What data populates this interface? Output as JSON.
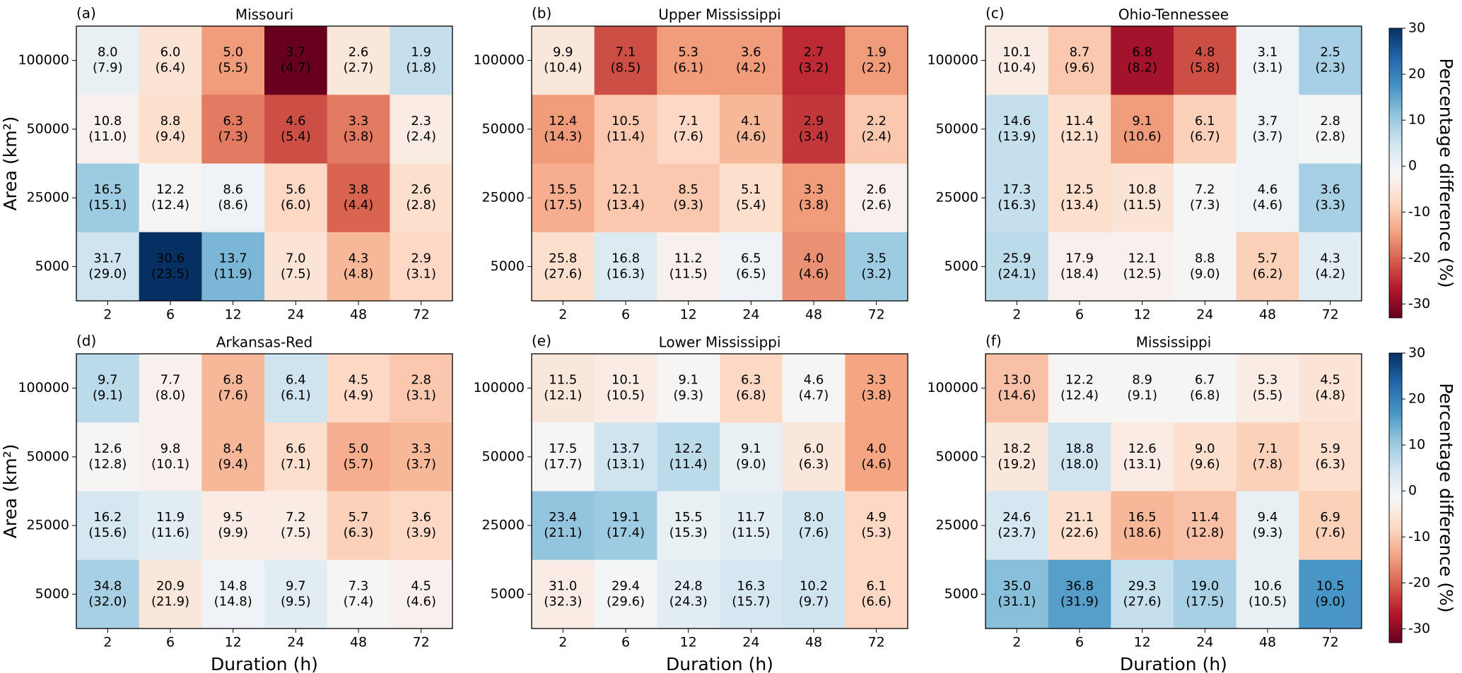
{
  "chart_data": [
    {
      "type": "heatmap",
      "panel_label": "(a)",
      "title": "Missouri",
      "y_label": "Area (km²)",
      "categories": [
        "2",
        "6",
        "12",
        "24",
        "48",
        "72"
      ],
      "rows": [
        "100000",
        "50000",
        "25000",
        "5000"
      ],
      "values": [
        [
          8.0,
          6.0,
          5.0,
          3.7,
          2.6,
          1.9
        ],
        [
          10.8,
          8.8,
          6.3,
          4.6,
          3.3,
          2.3
        ],
        [
          16.5,
          12.2,
          8.6,
          5.6,
          3.8,
          2.6
        ],
        [
          31.7,
          30.6,
          13.7,
          7.0,
          4.3,
          2.9
        ]
      ],
      "value_labels": [
        [
          "8.0",
          "6.0",
          "5.0",
          "3.7",
          "2.6",
          "1.9"
        ],
        [
          "10.8",
          "8.8",
          "6.3",
          "4.6",
          "3.3",
          "2.3"
        ],
        [
          "16.5",
          "12.2",
          "8.6",
          "5.6",
          "3.8",
          "2.6"
        ],
        [
          "31.7",
          "30.6",
          "13.7",
          "7.0",
          "4.3",
          "2.9"
        ]
      ],
      "ref_values": [
        [
          7.9,
          6.4,
          5.5,
          4.7,
          2.7,
          1.8
        ],
        [
          11.0,
          9.4,
          7.3,
          5.4,
          3.8,
          2.4
        ],
        [
          15.1,
          12.4,
          8.6,
          6.0,
          4.4,
          2.8
        ],
        [
          29.0,
          23.5,
          11.9,
          7.5,
          4.8,
          3.1
        ]
      ],
      "ref_labels": [
        [
          "(7.9)",
          "(6.4)",
          "(5.5)",
          "(4.7)",
          "(2.7)",
          "(1.8)"
        ],
        [
          "(11.0)",
          "(9.4)",
          "(7.3)",
          "(5.4)",
          "(3.8)",
          "(2.4)"
        ],
        [
          "(15.1)",
          "(12.4)",
          "(8.6)",
          "(6.0)",
          "(4.4)",
          "(2.8)"
        ],
        [
          "(29.0)",
          "(23.5)",
          "(11.9)",
          "(7.5)",
          "(4.8)",
          "(3.1)"
        ]
      ],
      "diff": [
        [
          1,
          -6,
          -15,
          -33,
          -5,
          6
        ],
        [
          -3,
          -7,
          -18,
          -22,
          -18,
          -4
        ],
        [
          10,
          -2,
          0,
          -8,
          -20,
          -7
        ],
        [
          5,
          30,
          13,
          -6,
          -12,
          -8
        ]
      ]
    },
    {
      "type": "heatmap",
      "panel_label": "(b)",
      "title": "Upper Mississippi",
      "categories": [
        "2",
        "6",
        "12",
        "24",
        "48",
        "72"
      ],
      "rows": [
        "100000",
        "50000",
        "25000",
        "5000"
      ],
      "values": [
        [
          9.9,
          7.1,
          5.3,
          3.6,
          2.7,
          1.9
        ],
        [
          12.4,
          10.5,
          7.1,
          4.1,
          2.9,
          2.2
        ],
        [
          15.5,
          12.1,
          8.5,
          5.1,
          3.3,
          2.6
        ],
        [
          25.8,
          16.8,
          11.2,
          6.5,
          4.0,
          3.5
        ]
      ],
      "value_labels": [
        [
          "9.9",
          "7.1",
          "5.3",
          "3.6",
          "2.7",
          "1.9"
        ],
        [
          "12.4",
          "10.5",
          "7.1",
          "4.1",
          "2.9",
          "2.2"
        ],
        [
          "15.5",
          "12.1",
          "8.5",
          "5.1",
          "3.3",
          "2.6"
        ],
        [
          "25.8",
          "16.8",
          "11.2",
          "6.5",
          "4.0",
          "3.5"
        ]
      ],
      "ref_values": [
        [
          10.4,
          8.5,
          6.1,
          4.2,
          3.2,
          2.2
        ],
        [
          14.3,
          11.4,
          7.6,
          4.6,
          3.4,
          2.4
        ],
        [
          17.5,
          13.4,
          9.3,
          5.4,
          3.8,
          2.6
        ],
        [
          27.6,
          16.3,
          11.5,
          6.5,
          4.6,
          3.2
        ]
      ],
      "ref_labels": [
        [
          "(10.4)",
          "(8.5)",
          "(6.1)",
          "(4.2)",
          "(3.2)",
          "(2.2)"
        ],
        [
          "(14.3)",
          "(11.4)",
          "(7.6)",
          "(4.6)",
          "(3.4)",
          "(2.4)"
        ],
        [
          "(17.5)",
          "(13.4)",
          "(9.3)",
          "(5.4)",
          "(3.8)",
          "(2.6)"
        ],
        [
          "(27.6)",
          "(16.3)",
          "(11.5)",
          "(6.5)",
          "(4.6)",
          "(3.2)"
        ]
      ],
      "diff": [
        [
          -5,
          -22,
          -15,
          -15,
          -25,
          -15
        ],
        [
          -15,
          -10,
          -8,
          -12,
          -24,
          -10
        ],
        [
          -13,
          -10,
          -10,
          -7,
          -15,
          -3
        ],
        [
          -7,
          3,
          -3,
          0,
          -16,
          10
        ]
      ]
    },
    {
      "type": "heatmap",
      "panel_label": "(c)",
      "title": "Ohio-Tennessee",
      "categories": [
        "2",
        "6",
        "12",
        "24",
        "48",
        "72"
      ],
      "rows": [
        "100000",
        "50000",
        "25000",
        "5000"
      ],
      "values": [
        [
          10.1,
          8.7,
          6.8,
          4.8,
          3.1,
          2.5
        ],
        [
          14.6,
          11.4,
          9.1,
          6.1,
          3.7,
          2.8
        ],
        [
          17.3,
          12.5,
          10.8,
          7.2,
          4.6,
          3.6
        ],
        [
          25.9,
          17.9,
          12.1,
          8.8,
          5.7,
          4.3
        ]
      ],
      "value_labels": [
        [
          "10.1",
          "8.7",
          "6.8",
          "4.8",
          "3.1",
          "2.5"
        ],
        [
          "14.6",
          "11.4",
          "9.1",
          "6.1",
          "3.7",
          "2.8"
        ],
        [
          "17.3",
          "12.5",
          "10.8",
          "7.2",
          "4.6",
          "3.6"
        ],
        [
          "25.9",
          "17.9",
          "12.1",
          "8.8",
          "5.7",
          "4.3"
        ]
      ],
      "ref_values": [
        [
          10.4,
          9.6,
          8.2,
          5.8,
          3.1,
          2.3
        ],
        [
          13.9,
          12.1,
          10.6,
          6.7,
          3.7,
          2.8
        ],
        [
          16.3,
          13.4,
          11.5,
          7.3,
          4.6,
          3.3
        ],
        [
          24.1,
          18.4,
          12.5,
          9.0,
          6.2,
          4.2
        ]
      ],
      "ref_labels": [
        [
          "(10.4)",
          "(9.6)",
          "(8.2)",
          "(5.8)",
          "(3.1)",
          "(2.3)"
        ],
        [
          "(13.9)",
          "(12.1)",
          "(10.6)",
          "(6.7)",
          "(3.7)",
          "(2.8)"
        ],
        [
          "(16.3)",
          "(13.4)",
          "(11.5)",
          "(7.3)",
          "(4.6)",
          "(3.3)"
        ],
        [
          "(24.1)",
          "(18.4)",
          "(12.5)",
          "(9.0)",
          "(6.2)",
          "(4.2)"
        ]
      ],
      "diff": [
        [
          -4,
          -10,
          -28,
          -22,
          0,
          9
        ],
        [
          6,
          -7,
          -15,
          -9,
          0,
          -1
        ],
        [
          6,
          -7,
          -6,
          -1,
          0,
          9
        ],
        [
          7,
          -3,
          -3,
          -2,
          -9,
          2
        ]
      ],
      "colorbar": {
        "label": "Percentage difference (%)",
        "lim": [
          -33,
          30
        ],
        "ticks": [
          30,
          20,
          10,
          0,
          -10,
          -20,
          -30
        ],
        "colormap": [
          "#67001f",
          "#b2182b",
          "#d6604d",
          "#f4a582",
          "#fddbc7",
          "#f7f7f7",
          "#d1e5f0",
          "#92c5de",
          "#4393c3",
          "#2166ac",
          "#053061"
        ]
      }
    },
    {
      "type": "heatmap",
      "panel_label": "(d)",
      "title": "Arkansas-Red",
      "y_label": "Area (km²)",
      "x_label": "Duration (h)",
      "categories": [
        "2",
        "6",
        "12",
        "24",
        "48",
        "72"
      ],
      "rows": [
        "100000",
        "50000",
        "25000",
        "5000"
      ],
      "values": [
        [
          9.7,
          7.7,
          6.8,
          6.4,
          4.5,
          2.8
        ],
        [
          12.6,
          9.8,
          8.4,
          6.6,
          5.0,
          3.3
        ],
        [
          16.2,
          11.9,
          9.5,
          7.2,
          5.7,
          3.6
        ],
        [
          34.8,
          20.9,
          14.8,
          9.7,
          7.3,
          4.5
        ]
      ],
      "value_labels": [
        [
          "9.7",
          "7.7",
          "6.8",
          "6.4",
          "4.5",
          "2.8"
        ],
        [
          "12.6",
          "9.8",
          "8.4",
          "6.6",
          "5.0",
          "3.3"
        ],
        [
          "16.2",
          "11.9",
          "9.5",
          "7.2",
          "5.7",
          "3.6"
        ],
        [
          "34.8",
          "20.9",
          "14.8",
          "9.7",
          "7.3",
          "4.5"
        ]
      ],
      "ref_values": [
        [
          9.1,
          8.0,
          7.6,
          6.1,
          4.9,
          3.1
        ],
        [
          12.8,
          10.1,
          9.4,
          7.1,
          5.7,
          3.7
        ],
        [
          15.6,
          11.6,
          9.9,
          7.5,
          6.3,
          3.9
        ],
        [
          32.0,
          21.9,
          14.8,
          9.5,
          7.4,
          4.6
        ]
      ],
      "ref_labels": [
        [
          "(9.1)",
          "(8.0)",
          "(7.6)",
          "(6.1)",
          "(4.9)",
          "(3.1)"
        ],
        [
          "(12.8)",
          "(10.1)",
          "(9.4)",
          "(7.1)",
          "(5.7)",
          "(3.7)"
        ],
        [
          "(15.6)",
          "(11.6)",
          "(9.9)",
          "(7.5)",
          "(6.3)",
          "(3.9)"
        ],
        [
          "(32.0)",
          "(21.9)",
          "(14.8)",
          "(9.5)",
          "(7.4)",
          "(4.6)"
        ]
      ],
      "diff": [
        [
          7,
          -3,
          -12,
          5,
          -8,
          -10
        ],
        [
          -2,
          -3,
          -12,
          -7,
          -13,
          -12
        ],
        [
          4,
          2,
          -4,
          -4,
          -9,
          -8
        ],
        [
          9,
          -5,
          0,
          2,
          -1,
          -3
        ]
      ]
    },
    {
      "type": "heatmap",
      "panel_label": "(e)",
      "title": "Lower Mississippi",
      "x_label": "Duration (h)",
      "categories": [
        "2",
        "6",
        "12",
        "24",
        "48",
        "72"
      ],
      "rows": [
        "100000",
        "50000",
        "25000",
        "5000"
      ],
      "values": [
        [
          11.5,
          10.1,
          9.1,
          6.3,
          4.6,
          3.3
        ],
        [
          17.5,
          13.7,
          12.2,
          9.1,
          6.0,
          4.0
        ],
        [
          23.4,
          19.1,
          15.5,
          11.7,
          8.0,
          4.9
        ],
        [
          31.0,
          29.4,
          24.8,
          16.3,
          10.2,
          6.1
        ]
      ],
      "value_labels": [
        [
          "11.5",
          "10.1",
          "9.1",
          "6.3",
          "4.6",
          "3.3"
        ],
        [
          "17.5",
          "13.7",
          "12.2",
          "9.1",
          "6.0",
          "4.0"
        ],
        [
          "23.4",
          "19.1",
          "15.5",
          "11.7",
          "8.0",
          "4.9"
        ],
        [
          "31.0",
          "29.4",
          "24.8",
          "16.3",
          "10.2",
          "6.1"
        ]
      ],
      "ref_values": [
        [
          12.1,
          10.5,
          9.3,
          6.8,
          4.7,
          3.8
        ],
        [
          17.7,
          13.1,
          11.4,
          9.0,
          6.3,
          4.6
        ],
        [
          21.1,
          17.4,
          15.3,
          11.5,
          7.6,
          5.3
        ],
        [
          32.3,
          29.6,
          24.3,
          15.7,
          9.7,
          6.6
        ]
      ],
      "ref_labels": [
        [
          "(12.1)",
          "(10.5)",
          "(9.3)",
          "(6.8)",
          "(4.7)",
          "(3.8)"
        ],
        [
          "(17.7)",
          "(13.1)",
          "(11.4)",
          "(9.0)",
          "(6.3)",
          "(4.6)"
        ],
        [
          "(21.1)",
          "(17.4)",
          "(15.3)",
          "(11.5)",
          "(7.6)",
          "(5.3)"
        ],
        [
          "(32.3)",
          "(29.6)",
          "(24.3)",
          "(15.7)",
          "(9.7)",
          "(6.6)"
        ]
      ],
      "diff": [
        [
          -5,
          -4,
          -2,
          -8,
          -2,
          -14
        ],
        [
          -1,
          5,
          7,
          1,
          -5,
          -14
        ],
        [
          11,
          10,
          1,
          2,
          5,
          -8
        ],
        [
          -4,
          -1,
          2,
          4,
          5,
          -8
        ]
      ]
    },
    {
      "type": "heatmap",
      "panel_label": "(f)",
      "title": "Mississippi",
      "x_label": "Duration (h)",
      "categories": [
        "2",
        "6",
        "12",
        "24",
        "48",
        "72"
      ],
      "rows": [
        "100000",
        "50000",
        "25000",
        "5000"
      ],
      "values": [
        [
          13.0,
          12.2,
          8.9,
          6.7,
          5.3,
          4.5
        ],
        [
          18.2,
          18.8,
          12.6,
          9.0,
          7.1,
          5.9
        ],
        [
          24.6,
          21.1,
          16.5,
          11.4,
          9.4,
          6.9
        ],
        [
          35.0,
          36.8,
          29.3,
          19.0,
          10.6,
          10.5
        ]
      ],
      "value_labels": [
        [
          "13.0",
          "12.2",
          "8.9",
          "6.7",
          "5.3",
          "4.5"
        ],
        [
          "18.2",
          "18.8",
          "12.6",
          "9.0",
          "7.1",
          "5.9"
        ],
        [
          "24.6",
          "21.1",
          "16.5",
          "11.4",
          "9.4",
          "6.9"
        ],
        [
          "35.0",
          "36.8",
          "29.3",
          "19.0",
          "10.6",
          "10.5"
        ]
      ],
      "ref_values": [
        [
          14.6,
          12.4,
          9.1,
          6.8,
          5.5,
          4.8
        ],
        [
          19.2,
          18.0,
          13.1,
          9.6,
          7.8,
          6.3
        ],
        [
          23.7,
          22.6,
          18.6,
          12.8,
          9.3,
          7.6
        ],
        [
          31.1,
          31.9,
          27.6,
          17.5,
          10.5,
          9.0
        ]
      ],
      "ref_labels": [
        [
          "(14.6)",
          "(12.4)",
          "(9.1)",
          "(6.8)",
          "(5.5)",
          "(4.8)"
        ],
        [
          "(19.2)",
          "(18.0)",
          "(13.1)",
          "(9.6)",
          "(7.8)",
          "(6.3)"
        ],
        [
          "(23.7)",
          "(22.6)",
          "(18.6)",
          "(12.8)",
          "(9.3)",
          "(7.6)"
        ],
        [
          "(31.1)",
          "(31.9)",
          "(27.6)",
          "(17.5)",
          "(10.5)",
          "(9.0)"
        ]
      ],
      "diff": [
        [
          -11,
          -2,
          -2,
          -1,
          -4,
          -6
        ],
        [
          -5,
          5,
          -4,
          -7,
          -9,
          -7
        ],
        [
          4,
          -7,
          -12,
          -11,
          1,
          -9
        ],
        [
          12,
          16,
          6,
          9,
          1,
          17
        ]
      ],
      "colorbar": {
        "label": "Percentage difference (%)",
        "lim": [
          -33,
          30
        ],
        "ticks": [
          30,
          20,
          10,
          0,
          -10,
          -20,
          -30
        ],
        "colormap": [
          "#67001f",
          "#b2182b",
          "#d6604d",
          "#f4a582",
          "#fddbc7",
          "#f7f7f7",
          "#d1e5f0",
          "#92c5de",
          "#4393c3",
          "#2166ac",
          "#053061"
        ]
      }
    }
  ]
}
